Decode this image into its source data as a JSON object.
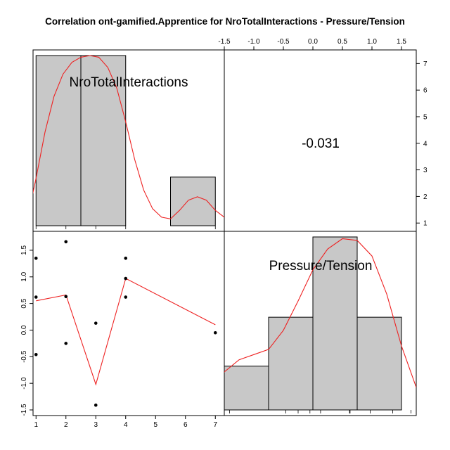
{
  "chart_data": {
    "type": "scatter-matrix",
    "title": "Correlation ont-gamified.Apprentice for NroTotalInteractions - Pressure/Tension",
    "variables": [
      "NroTotalInteractions",
      "Pressure/Tension"
    ],
    "correlation_text": "-0.031",
    "colors": {
      "hist_fill": "#c8c8c8",
      "density": "#ee2222",
      "smoother": "#ee2222",
      "points": "#000000",
      "frame": "#000000"
    },
    "x_ticks": {
      "values": [
        1,
        2,
        3,
        4,
        5,
        6,
        7
      ],
      "labels": [
        "1",
        "2",
        "3",
        "4",
        "5",
        "6",
        "7"
      ]
    },
    "x_range": [
      0.9,
      7.3
    ],
    "y_ticks": {
      "values": [
        -1.5,
        -1.0,
        -0.5,
        0.0,
        0.5,
        1.0,
        1.5
      ],
      "labels": [
        "-1.5",
        "-1.0",
        "-0.5",
        "0.0",
        "0.5",
        "1.0",
        "1.5"
      ]
    },
    "y_range": [
      -1.5,
      1.75
    ],
    "top_ticks": {
      "values": [
        -1.5,
        -1.0,
        -0.5,
        0.0,
        0.5,
        1.0,
        1.5
      ],
      "labels": [
        "-1.5",
        "-1.0",
        "-0.5",
        "0.0",
        "0.5",
        "1.0",
        "1.5"
      ]
    },
    "top_range": [
      -1.5,
      1.75
    ],
    "right_ticks": {
      "values": [
        1,
        2,
        3,
        4,
        5,
        6,
        7
      ],
      "labels": [
        "1",
        "2",
        "3",
        "4",
        "5",
        "6",
        "7"
      ]
    },
    "right_range": [
      0.9,
      7.3
    ],
    "scatter": {
      "x": [
        1,
        1,
        1,
        2,
        2,
        2,
        3,
        3,
        4,
        4,
        4,
        7
      ],
      "y": [
        1.35,
        0.62,
        -0.46,
        1.66,
        0.63,
        -0.25,
        0.13,
        -1.41,
        1.35,
        0.97,
        0.62,
        -0.05
      ]
    },
    "smoother": {
      "x": [
        1,
        2,
        3,
        4,
        7
      ],
      "y": [
        0.55,
        0.66,
        -1.02,
        0.97,
        0.1
      ]
    },
    "hist_1": {
      "breaks": [
        1,
        2.5,
        4,
        5.5,
        7
      ],
      "heights": [
        1.0,
        1.0,
        0.0,
        0.2857
      ],
      "rug": [
        1,
        2,
        3,
        4,
        7
      ],
      "density": {
        "x": [
          0.7,
          1.0,
          1.3,
          1.6,
          1.9,
          2.2,
          2.5,
          2.8,
          3.1,
          3.4,
          3.7,
          4.0,
          4.3,
          4.6,
          4.9,
          5.2,
          5.5,
          5.8,
          6.1,
          6.4,
          6.7,
          7.0,
          7.3
        ],
        "y": [
          0.03,
          0.28,
          0.55,
          0.76,
          0.89,
          0.96,
          0.99,
          1.0,
          0.99,
          0.93,
          0.81,
          0.61,
          0.39,
          0.21,
          0.1,
          0.05,
          0.04,
          0.09,
          0.15,
          0.17,
          0.15,
          0.09,
          0.05
        ]
      }
    },
    "hist_2": {
      "breaks": [
        -1.5,
        -0.75,
        0.0,
        0.75,
        1.5
      ],
      "heights": [
        0.253,
        0.536,
        1.0,
        0.536
      ],
      "rug": [
        -1.41,
        -0.46,
        -0.25,
        -0.05,
        0.13,
        0.62,
        0.63,
        0.97,
        1.35,
        1.66
      ],
      "density": {
        "x": [
          -1.75,
          -1.5,
          -1.25,
          -1.0,
          -0.75,
          -0.5,
          -0.25,
          0.0,
          0.25,
          0.5,
          0.75,
          1.0,
          1.25,
          1.5,
          1.75
        ],
        "y": [
          0.09,
          0.22,
          0.29,
          0.32,
          0.35,
          0.46,
          0.63,
          0.81,
          0.93,
          0.99,
          0.98,
          0.89,
          0.67,
          0.37,
          0.13
        ]
      }
    }
  }
}
